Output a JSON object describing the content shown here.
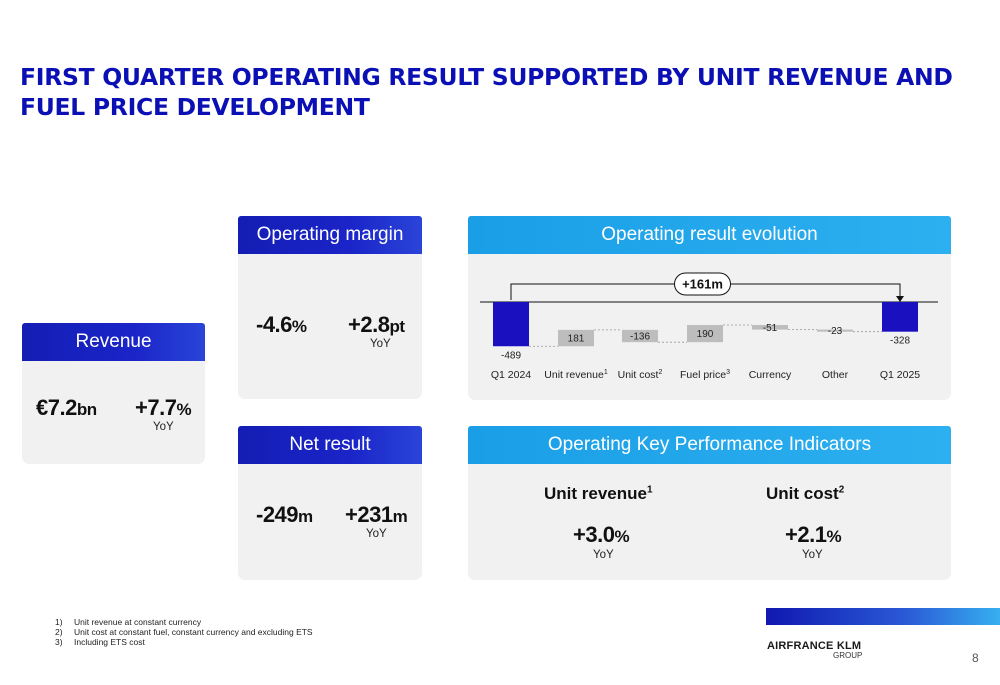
{
  "title": "FIRST QUARTER OPERATING RESULT SUPPORTED BY UNIT REVENUE AND FUEL PRICE DEVELOPMENT",
  "revenue": {
    "header": "Revenue",
    "value": "€7.2",
    "unit": "bn",
    "change": "+7.7",
    "change_unit": "%",
    "yoy": "YoY"
  },
  "operating_margin": {
    "header": "Operating margin",
    "value": "-4.6",
    "unit": "%",
    "change": "+2.8",
    "change_unit": "pt",
    "yoy": "YoY"
  },
  "net_result": {
    "header": "Net result",
    "value": "-249",
    "unit": "m",
    "change": "+231",
    "change_unit": "m",
    "yoy": "YoY"
  },
  "evolution": {
    "header": "Operating result evolution",
    "delta_label": "+161m"
  },
  "kpi": {
    "header": "Operating Key Performance Indicators",
    "unit_revenue_label": "Unit revenue",
    "unit_revenue_sup": "1",
    "unit_revenue_value": "+3.0",
    "unit_revenue_unit": "%",
    "unit_cost_label": "Unit cost",
    "unit_cost_sup": "2",
    "unit_cost_value": "+2.1",
    "unit_cost_unit": "%",
    "yoy": "YoY"
  },
  "footnotes": [
    {
      "num": "1)",
      "text": "Unit revenue at constant currency"
    },
    {
      "num": "2)",
      "text": "Unit cost at constant fuel, constant currency and excluding ETS"
    },
    {
      "num": "3)",
      "text": "Including ETS cost"
    }
  ],
  "brand": {
    "name": "AIRFRANCE KLM",
    "group": "GROUP"
  },
  "page_number": "8",
  "colors": {
    "brand_blue": "#0a10b4",
    "light_blue": "#1a9ee6",
    "bar_grey": "#bdbdbd"
  },
  "chart_data": {
    "type": "bar",
    "subtype": "waterfall",
    "categories": [
      "Q1 2024",
      "Unit revenue",
      "Unit cost",
      "Fuel price",
      "Currency",
      "Other",
      "Q1 2025"
    ],
    "category_sups": [
      "",
      "1",
      "2",
      "3",
      "",
      "",
      ""
    ],
    "values": [
      -489,
      181,
      -136,
      190,
      -51,
      -23,
      -328
    ],
    "labels": [
      "-489",
      "181",
      "-136",
      "190",
      "-51",
      "-23",
      "-328"
    ],
    "kinds": [
      "total",
      "delta",
      "delta",
      "delta",
      "delta",
      "delta",
      "total"
    ],
    "delta_label": "+161m"
  }
}
